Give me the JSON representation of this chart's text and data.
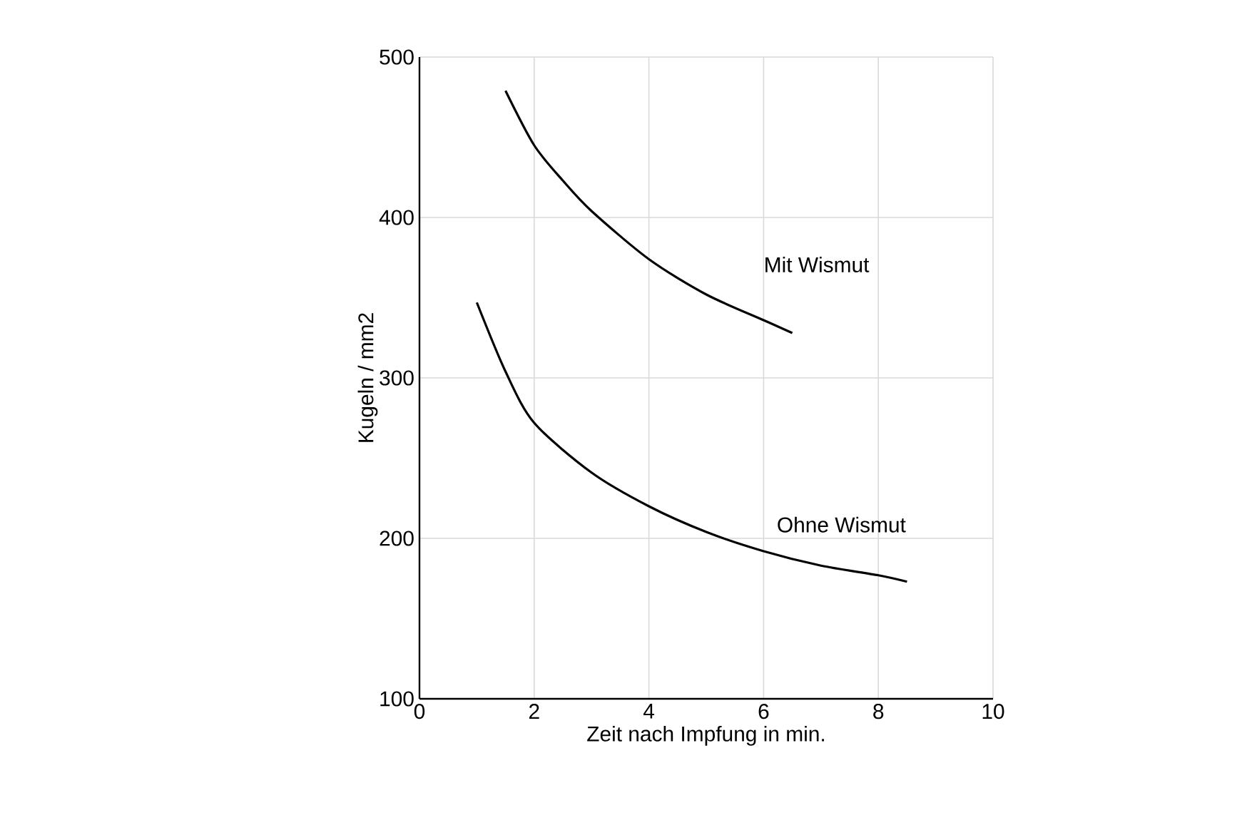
{
  "chart_data": {
    "type": "line",
    "xlabel": "Zeit nach Impfung in min.",
    "ylabel": "Kugeln / mm2",
    "series": [
      {
        "name": "Mit Wismut",
        "color": "#000000",
        "x": [
          1.5,
          2,
          2.5,
          3,
          4,
          5,
          6,
          6.5
        ],
        "values": [
          479,
          445,
          423,
          404,
          374,
          352,
          336,
          328
        ]
      },
      {
        "name": "Ohne Wismut",
        "color": "#000000",
        "x": [
          1,
          1.5,
          2,
          3,
          4,
          5,
          6,
          7,
          8,
          8.5
        ],
        "values": [
          347,
          304,
          272,
          241,
          220,
          204,
          192,
          183,
          177,
          173
        ]
      }
    ],
    "xlim": [
      0,
      10
    ],
    "xticks": [
      0,
      2,
      4,
      6,
      8,
      10
    ],
    "ylim": [
      100,
      500
    ],
    "yticks": [
      100,
      200,
      300,
      400,
      500
    ],
    "grid": true,
    "legend": false,
    "marker": "none",
    "line_style": "solid"
  }
}
